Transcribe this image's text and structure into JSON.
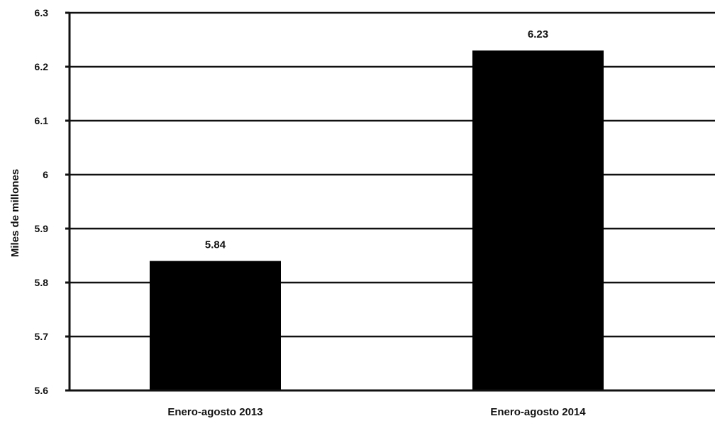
{
  "chart_data": {
    "type": "bar",
    "title": "",
    "xlabel": "",
    "ylabel": "Miles de millones",
    "categories": [
      "Enero-agosto 2013",
      "Enero-agosto 2014"
    ],
    "values": [
      5.84,
      6.23
    ],
    "value_labels": [
      "5.84",
      "6.23"
    ],
    "ylim": [
      5.6,
      6.3
    ],
    "yticks": [
      5.6,
      5.7,
      5.8,
      5.9,
      6.0,
      6.1,
      6.2,
      6.3
    ],
    "ytick_labels": [
      "5.6",
      "5.7",
      "5.8",
      "5.9",
      "6",
      "6.1",
      "6.2",
      "6.3"
    ],
    "grid": true,
    "legend": "none",
    "colors": {
      "bar": "#000000",
      "grid": "#111111",
      "text": "#111111",
      "background": "#ffffff"
    }
  }
}
